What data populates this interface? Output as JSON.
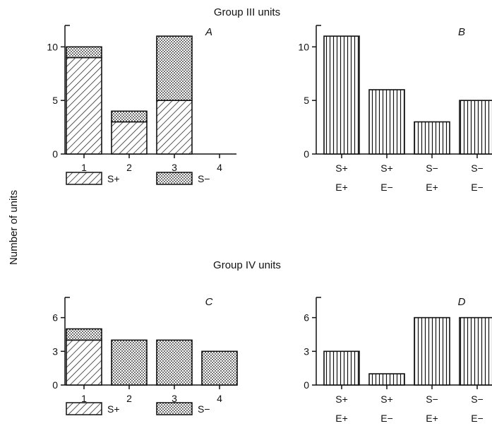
{
  "ylabel": "Number of units",
  "groups": [
    {
      "title": "Group III units"
    },
    {
      "title": "Group IV units"
    }
  ],
  "chart_data": [
    {
      "panel": "A",
      "type": "bar",
      "stacked": true,
      "categories": [
        "1",
        "2",
        "3",
        "4"
      ],
      "series": [
        {
          "name": "S+",
          "values": [
            9,
            3,
            5,
            0
          ]
        },
        {
          "name": "S−",
          "values": [
            1,
            1,
            6,
            0
          ]
        }
      ],
      "yticks": [
        0,
        5,
        10
      ],
      "ylim": [
        0,
        12
      ],
      "legend": "below"
    },
    {
      "panel": "B",
      "type": "bar",
      "stacked": false,
      "categories": [
        [
          "S+",
          "E+"
        ],
        [
          "S+",
          "E−"
        ],
        [
          "S−",
          "E+"
        ],
        [
          "S−",
          "E−"
        ]
      ],
      "values": [
        11,
        6,
        3,
        5
      ],
      "yticks": [
        0,
        5,
        10
      ],
      "ylim": [
        0,
        12
      ]
    },
    {
      "panel": "C",
      "type": "bar",
      "stacked": true,
      "categories": [
        "1",
        "2",
        "3",
        "4"
      ],
      "series": [
        {
          "name": "S+",
          "values": [
            4,
            0,
            0,
            0
          ]
        },
        {
          "name": "S−",
          "values": [
            1,
            4,
            4,
            3
          ]
        }
      ],
      "yticks": [
        0,
        3,
        6
      ],
      "ylim": [
        0,
        7.8
      ],
      "legend": "below"
    },
    {
      "panel": "D",
      "type": "bar",
      "stacked": false,
      "categories": [
        [
          "S+",
          "E+"
        ],
        [
          "S+",
          "E−"
        ],
        [
          "S−",
          "E+"
        ],
        [
          "S−",
          "E−"
        ]
      ],
      "values": [
        3,
        1,
        6,
        6
      ],
      "yticks": [
        0,
        3,
        6
      ],
      "ylim": [
        0,
        7.8
      ]
    }
  ],
  "colors": {
    "ink": "#111111",
    "background": "#ffffff"
  }
}
